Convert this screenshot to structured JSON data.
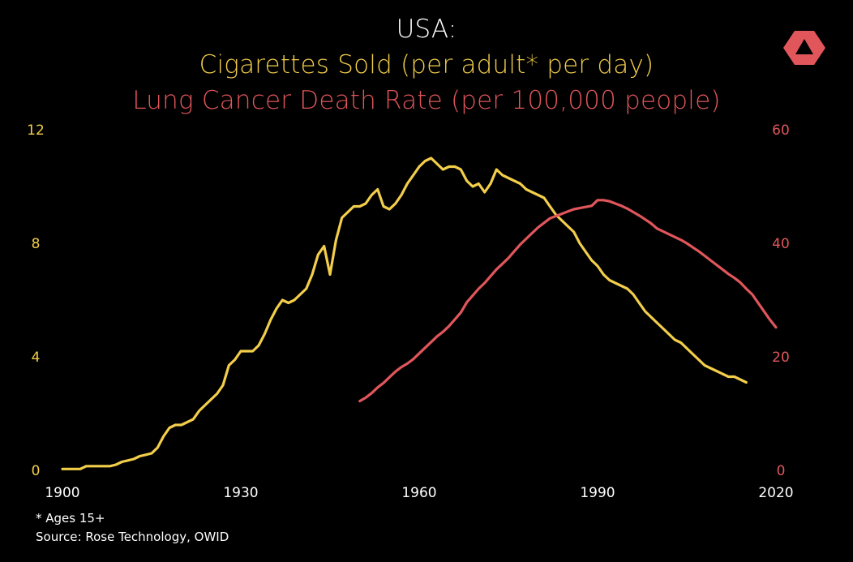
{
  "header": {
    "title": "USA:",
    "subtitle_cigarettes": "Cigarettes Sold (per adult* per day)",
    "subtitle_lung": "Lung Cancer Death Rate (per 100,000 people)"
  },
  "footnote": {
    "note": "* Ages 15+",
    "source": "Source: Rose Technology, OWID"
  },
  "logo": {
    "icon": "triangle-logo-icon",
    "color": "#e0565b"
  },
  "colors": {
    "background": "#000000",
    "cigarettes": "#f2ce4a",
    "lung_cancer": "#e0565b",
    "text": "#ffffff"
  },
  "chart_data": {
    "type": "line",
    "xlim": [
      1900,
      2020
    ],
    "x_ticks": [
      "1900",
      "1930",
      "1960",
      "1990",
      "2020"
    ],
    "y_left": {
      "ylim": [
        0,
        12
      ],
      "ticks": [
        "0",
        "4",
        "8",
        "12"
      ],
      "color": "#f2ce4a"
    },
    "y_right": {
      "ylim": [
        0,
        60
      ],
      "ticks": [
        "0",
        "20",
        "40",
        "60"
      ],
      "color": "#e0565b"
    },
    "grid": false,
    "series": [
      {
        "axis": "left",
        "color": "#f2ce4a",
        "x": [
          1900,
          1901,
          1902,
          1903,
          1904,
          1905,
          1906,
          1907,
          1908,
          1909,
          1910,
          1911,
          1912,
          1913,
          1914,
          1915,
          1916,
          1917,
          1918,
          1919,
          1920,
          1921,
          1922,
          1923,
          1924,
          1925,
          1926,
          1927,
          1928,
          1929,
          1930,
          1931,
          1932,
          1933,
          1934,
          1935,
          1936,
          1937,
          1938,
          1939,
          1940,
          1941,
          1942,
          1943,
          1944,
          1945,
          1946,
          1947,
          1948,
          1949,
          1950,
          1951,
          1952,
          1953,
          1954,
          1955,
          1956,
          1957,
          1958,
          1959,
          1960,
          1961,
          1962,
          1963,
          1964,
          1965,
          1966,
          1967,
          1968,
          1969,
          1970,
          1971,
          1972,
          1973,
          1974,
          1975,
          1976,
          1977,
          1978,
          1979,
          1980,
          1981,
          1982,
          1983,
          1984,
          1985,
          1986,
          1987,
          1988,
          1989,
          1990,
          1991,
          1992,
          1993,
          1994,
          1995,
          1996,
          1997,
          1998,
          1999,
          2000,
          2001,
          2002,
          2003,
          2004,
          2005,
          2006,
          2007,
          2008,
          2009,
          2010,
          2011,
          2012,
          2013,
          2014,
          2015
        ],
        "values": [
          0.05,
          0.05,
          0.05,
          0.05,
          0.15,
          0.15,
          0.15,
          0.15,
          0.15,
          0.2,
          0.3,
          0.35,
          0.4,
          0.5,
          0.55,
          0.6,
          0.8,
          1.2,
          1.5,
          1.6,
          1.6,
          1.7,
          1.8,
          2.1,
          2.3,
          2.5,
          2.7,
          3.0,
          3.7,
          3.9,
          4.2,
          4.2,
          4.2,
          4.4,
          4.8,
          5.3,
          5.7,
          6.0,
          5.9,
          6.0,
          6.2,
          6.4,
          6.9,
          7.6,
          7.9,
          6.9,
          8.1,
          8.9,
          9.1,
          9.3,
          9.3,
          9.4,
          9.7,
          9.9,
          9.3,
          9.2,
          9.4,
          9.7,
          10.1,
          10.4,
          10.7,
          10.9,
          11.0,
          10.8,
          10.6,
          10.7,
          10.7,
          10.6,
          10.2,
          10.0,
          10.1,
          9.8,
          10.1,
          10.6,
          10.4,
          10.3,
          10.2,
          10.1,
          9.9,
          9.8,
          9.7,
          9.6,
          9.3,
          9.0,
          8.8,
          8.6,
          8.4,
          8.0,
          7.7,
          7.4,
          7.2,
          6.9,
          6.7,
          6.6,
          6.5,
          6.4,
          6.2,
          5.9,
          5.6,
          5.4,
          5.2,
          5.0,
          4.8,
          4.6,
          4.5,
          4.3,
          4.1,
          3.9,
          3.7,
          3.6,
          3.5,
          3.4,
          3.3,
          3.3,
          3.2,
          3.1
        ]
      },
      {
        "axis": "right",
        "color": "#e0565b",
        "x": [
          1950,
          1951,
          1952,
          1953,
          1954,
          1955,
          1956,
          1957,
          1958,
          1959,
          1960,
          1961,
          1962,
          1963,
          1964,
          1965,
          1966,
          1967,
          1968,
          1969,
          1970,
          1971,
          1972,
          1973,
          1974,
          1975,
          1976,
          1977,
          1978,
          1979,
          1980,
          1981,
          1982,
          1983,
          1984,
          1985,
          1986,
          1987,
          1988,
          1989,
          1990,
          1991,
          1992,
          1993,
          1994,
          1995,
          1996,
          1997,
          1998,
          1999,
          2000,
          2001,
          2002,
          2003,
          2004,
          2005,
          2006,
          2007,
          2008,
          2009,
          2010,
          2011,
          2012,
          2013,
          2014,
          2015,
          2016,
          2017,
          2018,
          2019,
          2020
        ],
        "values": [
          12.2,
          12.8,
          13.6,
          14.6,
          15.4,
          16.4,
          17.4,
          18.2,
          18.8,
          19.6,
          20.6,
          21.6,
          22.6,
          23.6,
          24.4,
          25.4,
          26.6,
          27.8,
          29.6,
          30.8,
          32.0,
          33.0,
          34.2,
          35.4,
          36.4,
          37.4,
          38.6,
          39.8,
          40.8,
          41.8,
          42.8,
          43.6,
          44.4,
          44.8,
          45.2,
          45.6,
          46.0,
          46.2,
          46.4,
          46.6,
          47.6,
          47.6,
          47.4,
          47.0,
          46.6,
          46.1,
          45.5,
          44.9,
          44.2,
          43.5,
          42.6,
          42.1,
          41.6,
          41.1,
          40.6,
          40.0,
          39.3,
          38.6,
          37.8,
          37.0,
          36.2,
          35.4,
          34.6,
          33.9,
          33.1,
          32.0,
          31.0,
          29.5,
          28.0,
          26.5,
          25.2
        ]
      }
    ]
  }
}
